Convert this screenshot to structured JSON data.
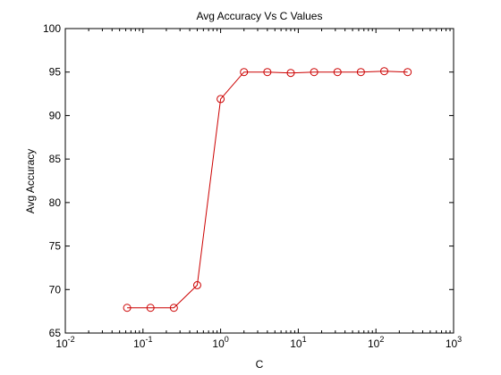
{
  "chart_data": {
    "type": "line",
    "title": "Avg Accuracy Vs C Values",
    "xlabel": "C",
    "ylabel": "Avg Accuracy",
    "xscale": "log",
    "xlim": [
      0.01,
      1000
    ],
    "ylim": [
      65,
      100
    ],
    "x_ticks": [
      {
        "value": 0.01,
        "base": "10",
        "exp": "-2"
      },
      {
        "value": 0.1,
        "base": "10",
        "exp": "-1"
      },
      {
        "value": 1,
        "base": "10",
        "exp": "0"
      },
      {
        "value": 10,
        "base": "10",
        "exp": "1"
      },
      {
        "value": 100,
        "base": "10",
        "exp": "2"
      },
      {
        "value": 1000,
        "base": "10",
        "exp": "3"
      }
    ],
    "y_ticks": [
      65,
      70,
      75,
      80,
      85,
      90,
      95,
      100
    ],
    "grid": false,
    "legend": "none",
    "series": [
      {
        "color": "#cc0000",
        "marker": "circle",
        "x": [
          0.0625,
          0.125,
          0.25,
          0.5,
          1,
          2,
          4,
          8,
          16,
          32,
          64,
          128,
          256
        ],
        "y": [
          67.9,
          67.9,
          67.9,
          70.5,
          91.9,
          95.0,
          95.0,
          94.9,
          95.0,
          95.0,
          95.0,
          95.1,
          95.0
        ]
      }
    ]
  }
}
